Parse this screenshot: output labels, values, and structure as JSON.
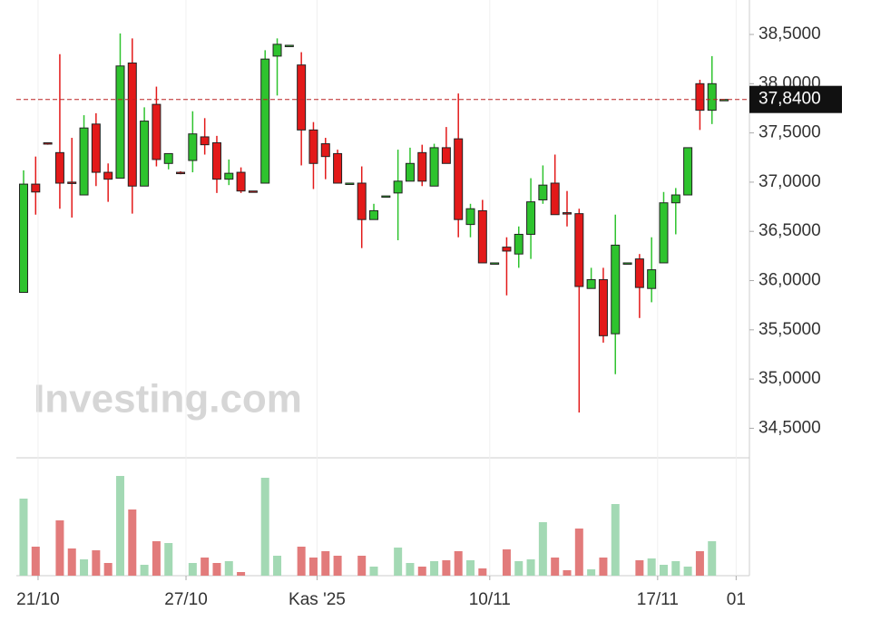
{
  "chart_data": {
    "type": "candlestick",
    "watermark": "Investing.com",
    "ylim": [
      34.2,
      38.85
    ],
    "yticks": [
      {
        "value": 34.5,
        "label": "34,5000"
      },
      {
        "value": 35,
        "label": "35,0000"
      },
      {
        "value": 35.5,
        "label": "35,5000"
      },
      {
        "value": 36,
        "label": "36,0000"
      },
      {
        "value": 36.5,
        "label": "36,5000"
      },
      {
        "value": 37,
        "label": "37,0000"
      },
      {
        "value": 37.5,
        "label": "37,5000"
      },
      {
        "value": 38,
        "label": "38,0000"
      },
      {
        "value": 38.5,
        "label": "38,5000"
      }
    ],
    "last_price": {
      "value": 37.84,
      "label": "37,8400"
    },
    "xlim": [
      -0.6,
      60.1
    ],
    "xticks": [
      {
        "value": 1.2,
        "label": "21/10"
      },
      {
        "value": 13.45,
        "label": "27/10"
      },
      {
        "value": 24.3,
        "label": "Kas '25"
      },
      {
        "value": 38.6,
        "label": "10/11"
      },
      {
        "value": 52.5,
        "label": "17/11"
      },
      {
        "value": 59,
        "label": "01"
      }
    ],
    "up_color": "#2ec32e",
    "down_color": "#e31919",
    "volume_up_color": "#a3d9b4",
    "volume_down_color": "#e27b7b",
    "open": [
      35.88,
      36.98,
      37.4,
      37.3,
      37.0,
      36.87,
      37.59,
      37.1,
      37.04,
      38.21,
      36.96,
      37.79,
      37.19,
      37.1,
      37.22,
      37.46,
      37.4,
      37.03,
      37.1,
      36.91,
      36.99,
      38.28,
      38.39,
      38.19,
      37.53,
      37.39,
      37.29,
      36.99,
      36.99,
      36.62,
      36.86,
      36.89,
      37.01,
      37.3,
      36.96,
      37.35,
      37.44,
      36.57,
      36.71,
      36.18,
      36.34,
      36.27,
      36.47,
      36.82,
      36.99,
      36.69,
      36.68,
      35.92,
      36.01,
      35.46,
      36.18,
      36.22,
      35.92,
      36.18,
      36.79,
      36.87,
      38.0,
      37.73,
      37.84
    ],
    "high": [
      37.12,
      37.26,
      37.4,
      38.3,
      37.45,
      37.68,
      37.7,
      37.19,
      38.51,
      38.46,
      37.76,
      37.97,
      37.29,
      37.11,
      37.72,
      37.65,
      37.47,
      37.23,
      37.15,
      36.91,
      38.34,
      38.46,
      38.39,
      38.32,
      37.61,
      37.45,
      37.33,
      36.99,
      37.16,
      36.78,
      36.86,
      37.33,
      37.35,
      37.38,
      37.39,
      37.56,
      37.9,
      36.78,
      36.82,
      36.18,
      36.44,
      36.55,
      37.04,
      37.17,
      37.28,
      36.91,
      36.73,
      36.13,
      36.13,
      36.67,
      36.18,
      36.27,
      36.44,
      36.9,
      36.94,
      37.35,
      38.04,
      38.28,
      37.84
    ],
    "low": [
      35.88,
      36.67,
      37.38,
      36.73,
      36.64,
      36.87,
      36.96,
      36.8,
      37.04,
      36.68,
      36.96,
      37.16,
      37.13,
      37.08,
      37.1,
      37.28,
      36.89,
      36.97,
      36.89,
      36.9,
      36.99,
      37.88,
      38.39,
      37.17,
      36.93,
      37.03,
      36.99,
      36.99,
      36.33,
      36.62,
      36.86,
      36.41,
      37.01,
      36.96,
      36.96,
      37.19,
      36.44,
      36.44,
      36.18,
      36.18,
      35.85,
      36.13,
      36.22,
      36.78,
      36.67,
      36.55,
      34.66,
      35.92,
      35.37,
      35.05,
      36.18,
      35.62,
      35.78,
      36.18,
      36.47,
      36.87,
      37.53,
      37.59,
      37.84
    ],
    "close": [
      36.98,
      36.9,
      37.39,
      36.99,
      36.99,
      37.55,
      37.1,
      37.03,
      38.18,
      36.96,
      37.62,
      37.23,
      37.29,
      37.09,
      37.49,
      37.38,
      37.03,
      37.09,
      36.91,
      36.9,
      38.25,
      38.4,
      38.39,
      37.53,
      37.19,
      37.26,
      36.99,
      36.99,
      36.62,
      36.71,
      36.86,
      37.01,
      37.19,
      37.01,
      37.35,
      37.19,
      36.62,
      36.73,
      36.18,
      36.18,
      36.3,
      36.47,
      36.8,
      36.97,
      36.67,
      36.68,
      35.94,
      36.01,
      35.44,
      36.36,
      36.18,
      35.93,
      36.11,
      36.79,
      36.87,
      37.35,
      37.73,
      38.0,
      37.84
    ],
    "volume": [
      85,
      32,
      0,
      61,
      30,
      18,
      28,
      14,
      110,
      73,
      12,
      38,
      36,
      0,
      14,
      20,
      14,
      16,
      4,
      0,
      108,
      22,
      0,
      32,
      20,
      27,
      22,
      0,
      22,
      10,
      0,
      31,
      14,
      10,
      16,
      17,
      27,
      17,
      8,
      0,
      29,
      16,
      18,
      59,
      20,
      6,
      52,
      7,
      20,
      79,
      0,
      17,
      19,
      12,
      16,
      10,
      27,
      38,
      0
    ],
    "volume_ylim": [
      0,
      130
    ]
  }
}
